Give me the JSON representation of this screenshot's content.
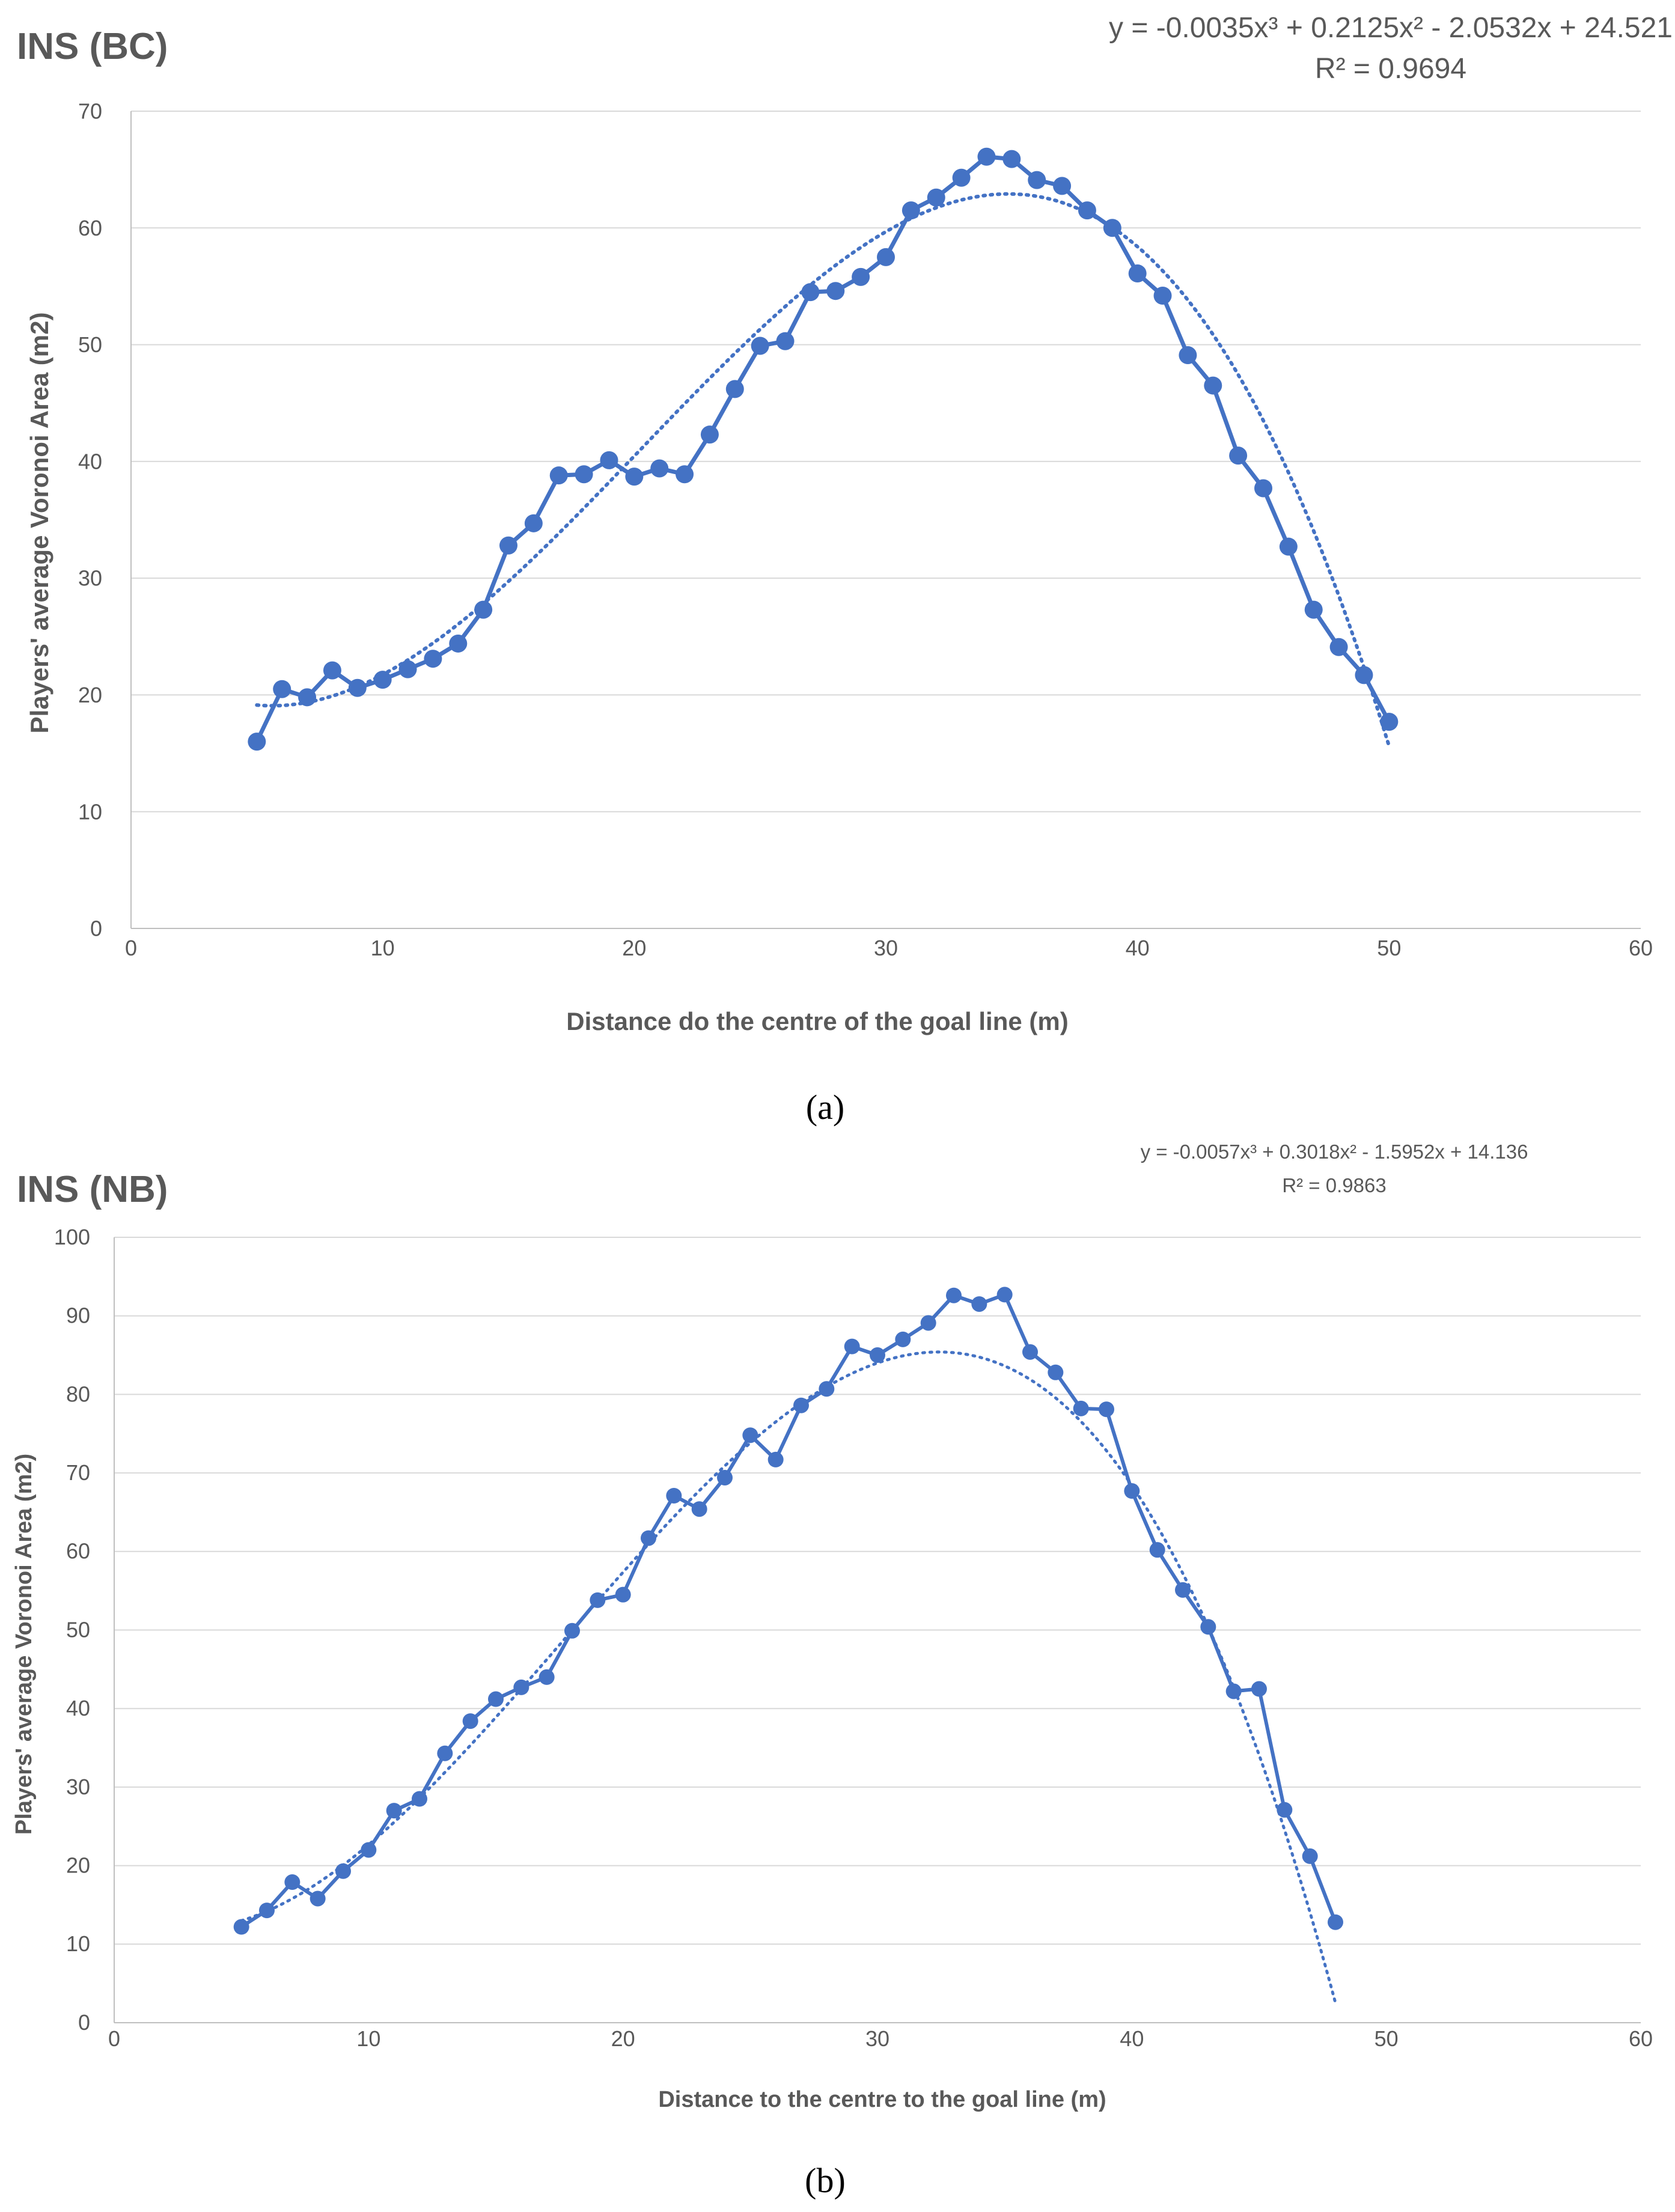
{
  "figure": {
    "panel_a_caption": "(a)",
    "panel_b_caption": "(b)"
  },
  "chart_data": [
    {
      "type": "line",
      "title": "INS (BC)",
      "equation": "y = -0.0035x³ + 0.2125x² - 2.0532x + 24.521",
      "r_squared": "R² = 0.9694",
      "xlabel": "Distance do the centre of the goal line (m)",
      "ylabel": "Players' average Voronoi Area (m2)",
      "xlim": [
        0,
        60
      ],
      "ylim": [
        0,
        70
      ],
      "xticks": [
        0,
        10,
        20,
        30,
        40,
        50,
        60
      ],
      "yticks": [
        0,
        10,
        20,
        30,
        40,
        50,
        60,
        70
      ],
      "grid": true,
      "series_color": "#4472C4",
      "x": [
        5,
        6,
        7,
        8,
        9,
        10,
        11,
        12,
        13,
        14,
        15,
        16,
        17,
        18,
        19,
        20,
        21,
        22,
        23,
        24,
        25,
        26,
        27,
        28,
        29,
        30,
        31,
        32,
        33,
        34,
        35,
        36,
        37,
        38,
        39,
        40,
        41,
        42,
        43,
        44,
        45,
        46,
        47,
        48,
        49,
        50
      ],
      "values": [
        16.0,
        20.5,
        19.8,
        22.1,
        20.6,
        21.3,
        22.2,
        23.1,
        24.4,
        27.3,
        32.8,
        34.7,
        38.8,
        38.9,
        40.1,
        38.7,
        39.4,
        38.9,
        42.3,
        46.2,
        49.9,
        50.3,
        54.5,
        54.6,
        55.8,
        57.5,
        61.5,
        62.6,
        64.3,
        66.1,
        65.9,
        64.1,
        63.6,
        61.5,
        60.0,
        56.1,
        54.2,
        49.1,
        46.5,
        40.5,
        37.7,
        32.7,
        27.3,
        24.1,
        21.7,
        17.7
      ],
      "trendline": {
        "type": "polynomial",
        "coefficients": [
          -0.0035,
          0.2125,
          -2.0532,
          24.521
        ],
        "x_range": [
          5,
          50
        ]
      }
    },
    {
      "type": "line",
      "title": "INS (NB)",
      "equation": "y = -0.0057x³ + 0.3018x² - 1.5952x + 14.136",
      "r_squared": "R² = 0.9863",
      "xlabel": "Distance to the centre to the goal line (m)",
      "ylabel": "Players' average Voronoi Area (m2)",
      "xlim": [
        0,
        60
      ],
      "ylim": [
        0,
        100
      ],
      "xticks": [
        0,
        10,
        20,
        30,
        40,
        50,
        60
      ],
      "yticks": [
        0,
        10,
        20,
        30,
        40,
        50,
        60,
        70,
        80,
        90,
        100
      ],
      "grid": true,
      "series_color": "#4472C4",
      "x": [
        5,
        6,
        7,
        8,
        9,
        10,
        11,
        12,
        13,
        14,
        15,
        16,
        17,
        18,
        19,
        20,
        21,
        22,
        23,
        24,
        25,
        26,
        27,
        28,
        29,
        30,
        31,
        32,
        33,
        34,
        35,
        36,
        37,
        38,
        39,
        40,
        41,
        42,
        43,
        44,
        45,
        46,
        47,
        48
      ],
      "values": [
        12.2,
        14.3,
        17.9,
        15.8,
        19.3,
        22.0,
        27.0,
        28.5,
        34.3,
        38.4,
        41.2,
        42.7,
        44.0,
        49.9,
        53.8,
        54.5,
        61.7,
        67.1,
        65.4,
        69.4,
        74.8,
        71.7,
        78.6,
        80.7,
        86.1,
        85.0,
        87.0,
        89.1,
        92.6,
        91.5,
        92.7,
        85.4,
        82.8,
        78.2,
        78.1,
        67.7,
        60.2,
        55.1,
        50.4,
        42.2,
        42.5,
        27.1,
        21.2,
        12.8
      ],
      "trendline": {
        "type": "polynomial",
        "coefficients": [
          -0.0057,
          0.3018,
          -1.5952,
          14.136
        ],
        "x_range": [
          5,
          48
        ]
      }
    }
  ]
}
